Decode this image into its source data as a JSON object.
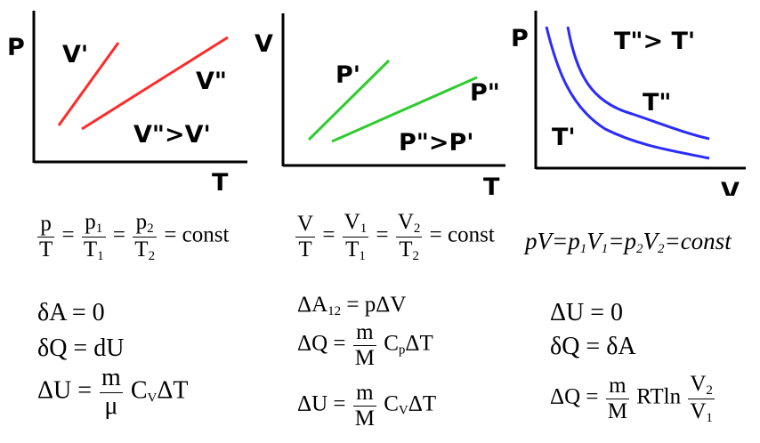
{
  "colors": {
    "isochoric": "#ff2a2a",
    "isobaric": "#2ecc2e",
    "isothermal": "#2b2bff",
    "axis": "#000000"
  },
  "plots": {
    "isochoric": {
      "y_axis": "P",
      "x_axis": "T",
      "lower_line": "V'",
      "upper_line": "V\"",
      "relation": "V\">V'"
    },
    "isobaric": {
      "y_axis": "V",
      "x_axis": "T",
      "lower_line": "P'",
      "upper_line": "P\"",
      "relation": "P\">P'"
    },
    "isothermal": {
      "y_axis": "P",
      "x_axis": "V",
      "lower_curve": "T'",
      "upper_curve": "T\"",
      "relation": "T\"> T'"
    }
  },
  "formulas": {
    "isochoric": {
      "law": {
        "p": "p",
        "T": "T",
        "p1": "p",
        "T1": "T",
        "p2": "p",
        "T2": "T",
        "sub1": "1",
        "sub2": "2",
        "eq": "=",
        "const": "= const"
      },
      "work": "δA = 0",
      "heat": "δQ = dU",
      "energy": {
        "lhs": "ΔU =",
        "m": "m",
        "mu": "μ",
        "rest": "CVΔT",
        "C": "C",
        "sub": "V",
        "tail": "ΔT"
      }
    },
    "isobaric": {
      "law": {
        "V": "V",
        "T": "T",
        "V1": "V",
        "T1": "T",
        "V2": "V",
        "T2": "T",
        "sub1": "1",
        "sub2": "2",
        "eq": "=",
        "const": "= const"
      },
      "work": {
        "lhs": "ΔA",
        "sub": "12",
        "rhs": "= pΔV"
      },
      "heat": {
        "lhs": "ΔQ =",
        "m": "m",
        "M": "M",
        "C": "C",
        "sub": "p",
        "tail": "ΔT"
      },
      "energy": {
        "lhs": "ΔU =",
        "m": "m",
        "M": "M",
        "C": "C",
        "sub": "V",
        "tail": "ΔT"
      }
    },
    "isothermal": {
      "law": {
        "pV": "pV",
        "eq": "=",
        "p": "p",
        "V": "V",
        "sub1": "1",
        "sub2": "2",
        "const": "const"
      },
      "energy": "ΔU = 0",
      "heat": "δQ = δA",
      "heat_full": {
        "lhs": "ΔQ =",
        "m": "m",
        "M": "M",
        "mid": "RTln",
        "V2": "V",
        "V1": "V",
        "sub1": "1",
        "sub2": "2"
      }
    }
  }
}
